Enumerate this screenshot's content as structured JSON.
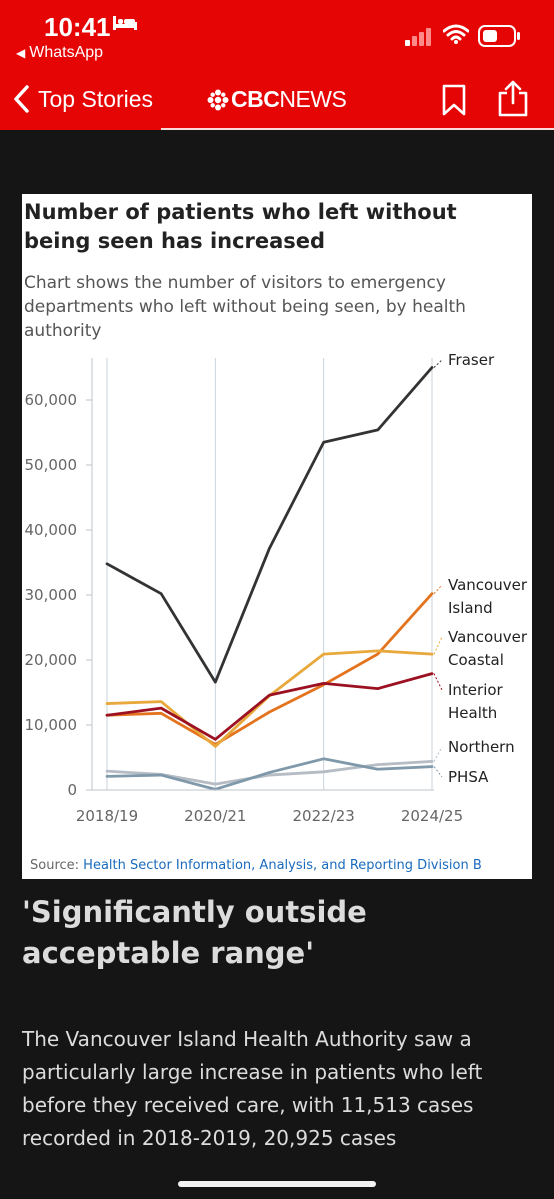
{
  "status": {
    "time": "10:41",
    "back_app": "WhatsApp"
  },
  "nav": {
    "back_label": "Top Stories",
    "brand_bold": "CBC",
    "brand_light": "NEWS"
  },
  "colors": {
    "brand_red": "#e60505",
    "background": "#151515"
  },
  "icons": [
    "bed-icon",
    "back-triangle-icon",
    "signal-icon",
    "wifi-icon",
    "battery-icon",
    "chevron-left-icon",
    "cbc-gem-icon",
    "bookmark-icon",
    "share-icon"
  ],
  "article": {
    "subhead": "'Significantly outside acceptable range'",
    "body": "The Vancouver Island Health Authority saw a particularly large increase in patients who left before they received care, with 11,513 cases recorded in 2018-2019, 20,925 cases"
  },
  "chart_data": {
    "type": "line",
    "title": "Number of patients who left without being seen has increased",
    "subtitle": "Chart shows the number of visitors to emergency departments who left without being seen, by health authority",
    "source_label": "Source:",
    "source_text": "Health Sector Information, Analysis, and Reporting Division B",
    "x": [
      "2018/19",
      "2019/20",
      "2020/21",
      "2021/22",
      "2022/23",
      "2023/24",
      "2024/25"
    ],
    "x_tick_labels": [
      "2018/19",
      "2020/21",
      "2022/23",
      "2024/25"
    ],
    "y_ticks": [
      "0",
      "10,000",
      "20,000",
      "30,000",
      "40,000",
      "50,000",
      "60,000"
    ],
    "ylim": [
      0,
      65000
    ],
    "grid": "vertical",
    "legend": "right, at line ends",
    "series": [
      {
        "name": "Fraser",
        "label_lines": [
          "Fraser"
        ],
        "color": "#333333",
        "values": [
          34800,
          30200,
          16600,
          37200,
          53500,
          55400,
          65000
        ]
      },
      {
        "name": "Vancouver Island",
        "label_lines": [
          "Vancouver",
          "Island"
        ],
        "color": "#e4731e",
        "values": [
          11513,
          11800,
          7000,
          12000,
          16200,
          20925,
          30200
        ]
      },
      {
        "name": "Vancouver Coastal",
        "label_lines": [
          "Vancouver",
          "Coastal"
        ],
        "color": "#e8a83c",
        "values": [
          13300,
          13600,
          6700,
          14500,
          20900,
          21400,
          20900
        ]
      },
      {
        "name": "Interior Health",
        "label_lines": [
          "Interior",
          "Health"
        ],
        "color": "#9b1122",
        "values": [
          11500,
          12600,
          7800,
          14600,
          16400,
          15600,
          17900
        ]
      },
      {
        "name": "Northern",
        "label_lines": [
          "Northern"
        ],
        "color": "#b5bcc4",
        "values": [
          2900,
          2400,
          900,
          2300,
          2800,
          3900,
          4400
        ]
      },
      {
        "name": "PHSA",
        "label_lines": [
          "PHSA"
        ],
        "color": "#7f99ab",
        "values": [
          2100,
          2300,
          100,
          2700,
          4800,
          3200,
          3600
        ]
      }
    ]
  }
}
